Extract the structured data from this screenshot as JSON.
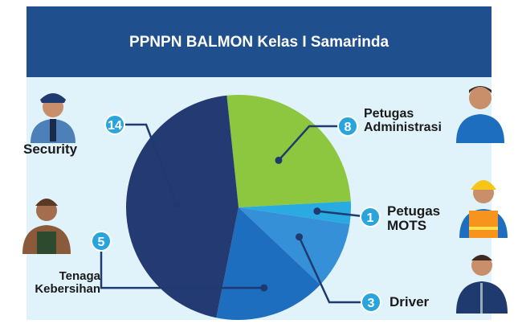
{
  "chart_data": {
    "type": "pie",
    "title": "PPNPN BALMON Kelas I Samarinda",
    "categories": [
      "Petugas Administrasi",
      "Petugas MOTS",
      "Driver",
      "Tenaga Kebersihan",
      "Security"
    ],
    "values": [
      8,
      1,
      3,
      5,
      14
    ],
    "colors": [
      "#8dc63f",
      "#29abe2",
      "#3590d8",
      "#1e6ec0",
      "#233a72"
    ]
  }
}
